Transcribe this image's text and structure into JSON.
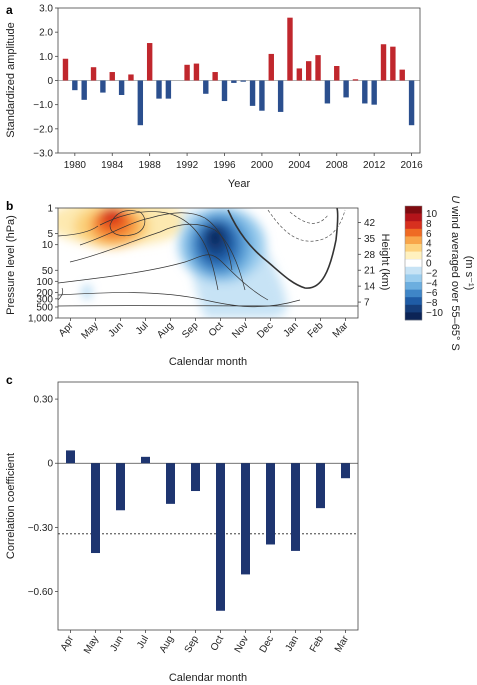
{
  "panels": {
    "a": {
      "letter": "a"
    },
    "b": {
      "letter": "b"
    },
    "c": {
      "letter": "c"
    }
  },
  "chart_data": [
    {
      "type": "bar",
      "panel": "a",
      "xlabel": "Year",
      "ylabel": "Standardized amplitude",
      "x": [
        1979,
        1980,
        1981,
        1982,
        1983,
        1984,
        1985,
        1986,
        1987,
        1988,
        1989,
        1990,
        1991,
        1992,
        1993,
        1994,
        1995,
        1996,
        1997,
        1998,
        1999,
        2000,
        2001,
        2002,
        2003,
        2004,
        2005,
        2006,
        2007,
        2008,
        2009,
        2010,
        2011,
        2012,
        2013,
        2014,
        2015,
        2016
      ],
      "values": [
        0.9,
        -0.4,
        -0.8,
        0.55,
        -0.5,
        0.35,
        -0.6,
        0.25,
        -1.85,
        1.55,
        -0.75,
        -0.75,
        0.0,
        0.65,
        0.7,
        -0.55,
        0.35,
        -0.85,
        -0.1,
        -0.05,
        -1.05,
        -1.25,
        1.1,
        -1.3,
        2.6,
        0.5,
        0.8,
        1.05,
        -0.95,
        0.6,
        -0.7,
        0.05,
        -0.95,
        -1.0,
        1.5,
        1.4,
        0.45,
        -1.85
      ],
      "x_ticks": [
        "1980",
        "1984",
        "1988",
        "1992",
        "1996",
        "2000",
        "2004",
        "2008",
        "2012",
        "2016"
      ],
      "y_ticks": [
        "3.0",
        "2.0",
        "1.0",
        "0",
        "−1.0",
        "−2.0",
        "−3.0"
      ],
      "ylim": [
        -3,
        3
      ],
      "colors": {
        "positive": "#c0272d",
        "negative": "#2b4f8e"
      }
    },
    {
      "type": "heatmap",
      "panel": "b",
      "xlabel": "Calendar month",
      "ylabel": "Pressure level (hPa)",
      "ylabel_right": "Height (km)",
      "x_ticks": [
        "Apr",
        "May",
        "Jun",
        "Jul",
        "Aug",
        "Sep",
        "Oct",
        "Nov",
        "Dec",
        "Jan",
        "Feb",
        "Mar"
      ],
      "y_ticks_left": [
        "1",
        "5",
        "10",
        "50",
        "100",
        "200",
        "300",
        "500",
        "1,000"
      ],
      "y_ticks_right": [
        "42",
        "35",
        "28",
        "21",
        "14",
        "7"
      ],
      "colorbar": {
        "title_prefix": "U",
        "title_rest": " wind averaged over 55–65° S",
        "units": "(m s⁻¹)",
        "tick_labels": [
          "10",
          "8",
          "6",
          "4",
          "2",
          "0",
          "−2",
          "−4",
          "−6",
          "−8",
          "−10"
        ],
        "colors": [
          "#7f0b10",
          "#b3141a",
          "#d7301f",
          "#ef6a23",
          "#f8a54a",
          "#fdd27e",
          "#fff1bf",
          "#ffffff",
          "#c7e3f5",
          "#9bcdee",
          "#6caedf",
          "#3f86c7",
          "#1f5ca6",
          "#153d7a",
          "#0c2456"
        ]
      }
    },
    {
      "type": "bar",
      "panel": "c",
      "xlabel": "Calendar month",
      "ylabel": "Correlation coefficient",
      "categories": [
        "Apr",
        "May",
        "Jun",
        "Jul",
        "Aug",
        "Sep",
        "Oct",
        "Nov",
        "Dec",
        "Jan",
        "Feb",
        "Mar"
      ],
      "values": [
        0.06,
        -0.42,
        -0.22,
        0.03,
        -0.19,
        -0.13,
        -0.69,
        -0.52,
        -0.38,
        -0.41,
        -0.21,
        -0.07
      ],
      "y_ticks": [
        "0.30",
        "0",
        "−0.30",
        "−0.60"
      ],
      "ylim": [
        -0.78,
        0.38
      ],
      "reference_line": -0.33,
      "colors": {
        "bar": "#1e3570"
      }
    }
  ]
}
